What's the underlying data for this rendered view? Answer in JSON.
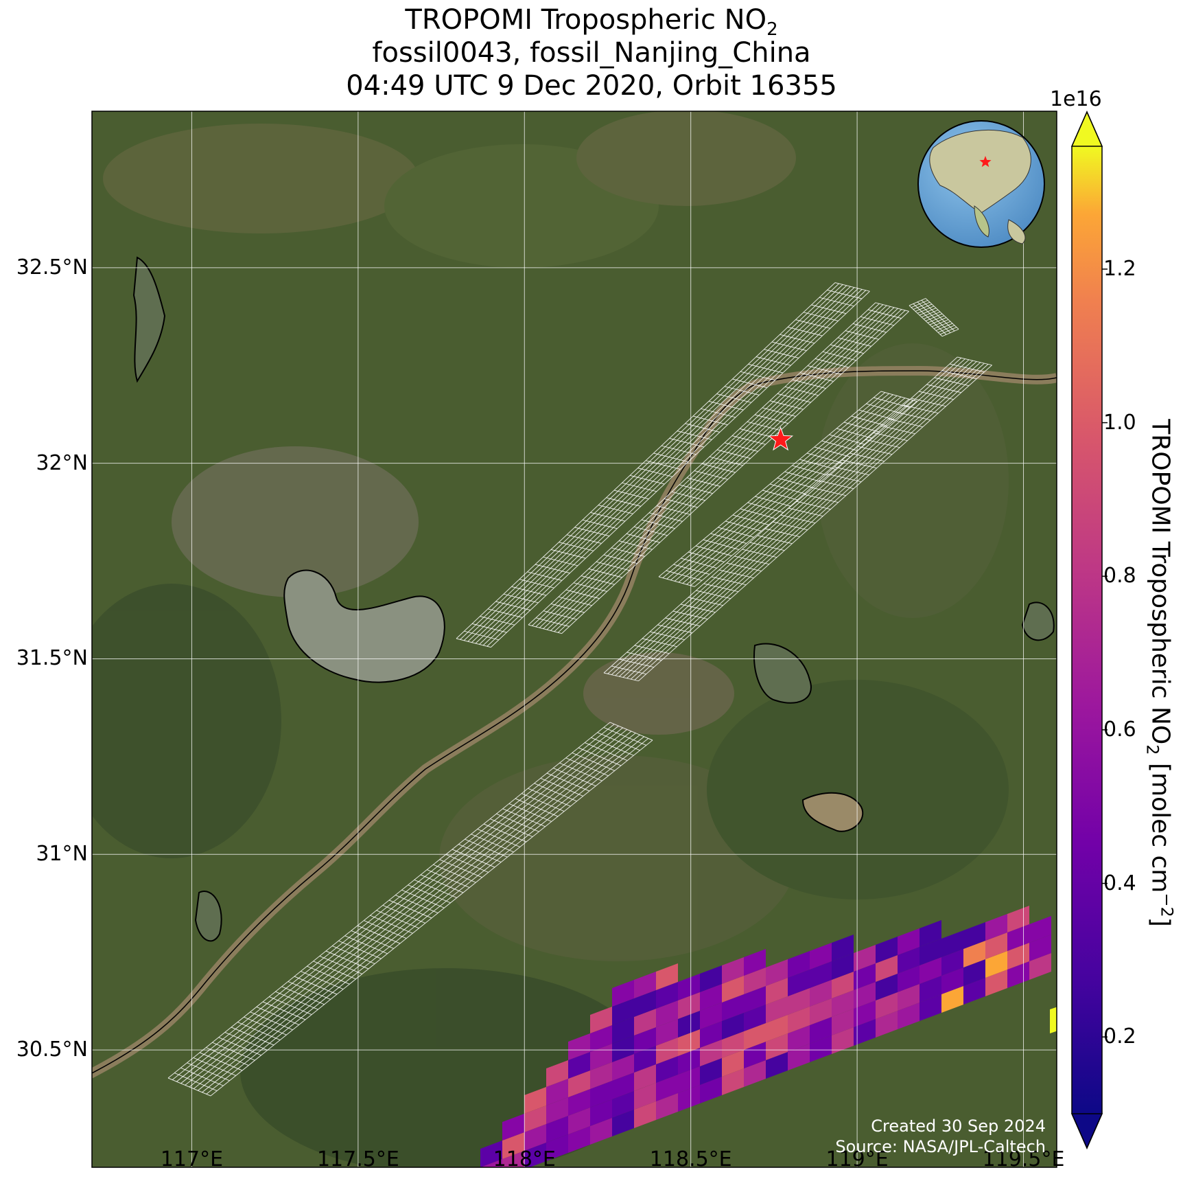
{
  "title": {
    "line1": "TROPOMI Tropospheric NO",
    "line1_sub": "2",
    "line2": "fossil0043, fossil_Nanjing_China",
    "line3": "04:49 UTC 9 Dec 2020, Orbit 16355"
  },
  "map": {
    "extent": {
      "lon_min": 116.7,
      "lon_max": 119.6,
      "lat_min": 30.2,
      "lat_max": 32.9
    },
    "lat_ticks": [
      {
        "value": 32.5,
        "label": "32.5°N"
      },
      {
        "value": 32.0,
        "label": "32°N"
      },
      {
        "value": 31.5,
        "label": "31.5°N"
      },
      {
        "value": 31.0,
        "label": "31°N"
      },
      {
        "value": 30.5,
        "label": "30.5°N"
      }
    ],
    "lon_ticks": [
      {
        "value": 117.0,
        "label": "117°E"
      },
      {
        "value": 117.5,
        "label": "117.5°E"
      },
      {
        "value": 118.0,
        "label": "118°E"
      },
      {
        "value": 118.5,
        "label": "118.5°E"
      },
      {
        "value": 119.0,
        "label": "119°E"
      },
      {
        "value": 119.5,
        "label": "119.5°E"
      }
    ],
    "site": {
      "name": "fossil_Nanjing_China",
      "lon": 118.77,
      "lat": 32.06,
      "marker": "red-star"
    },
    "basemap": "satellite-imagery",
    "overlay": "white-footprint-grid",
    "inset": "globe-centered-on-east-asia"
  },
  "colorbar": {
    "label": "TROPOMI Tropospheric NO",
    "label_sub": "2",
    "label_units": " [molec cm",
    "label_sup": "−2",
    "label_end": "]",
    "exponent": "1e16",
    "colormap": "plasma",
    "min": 0.1,
    "max": 1.36,
    "ticks": [
      {
        "value": 0.2,
        "label": "0.2"
      },
      {
        "value": 0.4,
        "label": "0.4"
      },
      {
        "value": 0.6,
        "label": "0.6"
      },
      {
        "value": 0.8,
        "label": "0.8"
      },
      {
        "value": 1.0,
        "label": "1.0"
      },
      {
        "value": 1.2,
        "label": "1.2"
      }
    ]
  },
  "credits": {
    "created": "Created 30 Sep 2024",
    "source": "Source: NASA/JPL-Caltech"
  },
  "colors": {
    "land": "#4a5d30",
    "water": "#8a9180",
    "river": "#8b7d5c",
    "grid_lines": "#ffffff",
    "coastline": "#000000",
    "star": "#ff1a1a",
    "ocean": "#6aa3d6"
  }
}
